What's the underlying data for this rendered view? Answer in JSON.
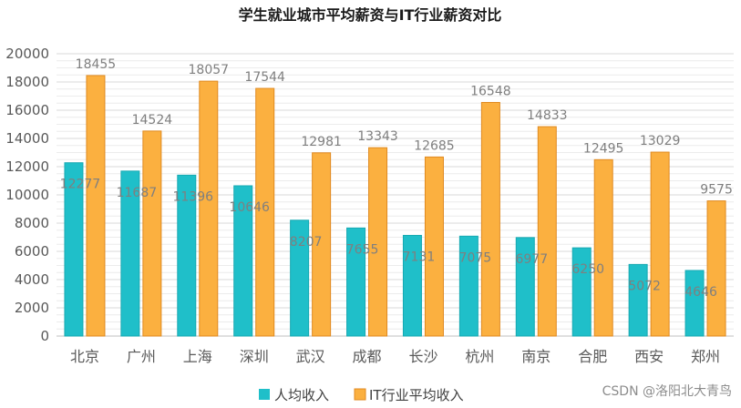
{
  "chart_data": {
    "type": "bar",
    "title": "学生就业城市平均薪资与IT行业薪资对比",
    "xlabel": "",
    "ylabel": "",
    "ylim": [
      0,
      20000
    ],
    "yticks": [
      0,
      2000,
      4000,
      6000,
      8000,
      10000,
      12000,
      14000,
      16000,
      18000,
      20000
    ],
    "grid": true,
    "legend": "bottom",
    "categories": [
      "北京",
      "广州",
      "上海",
      "深圳",
      "武汉",
      "成都",
      "长沙",
      "杭州",
      "南京",
      "合肥",
      "西安",
      "郑州"
    ],
    "series": [
      {
        "name": "人均收入",
        "color": "#1fbfc9",
        "values": [
          12277,
          11687,
          11396,
          10646,
          8207,
          7655,
          7131,
          7075,
          6977,
          6250,
          5072,
          4646
        ]
      },
      {
        "name": "IT行业平均收入",
        "color": "#fbb040",
        "values": [
          18455,
          14524,
          18057,
          17544,
          12981,
          13343,
          12685,
          16548,
          14833,
          12495,
          13029,
          9575
        ]
      }
    ]
  },
  "watermark": "CSDN @洛阳北大青鸟"
}
